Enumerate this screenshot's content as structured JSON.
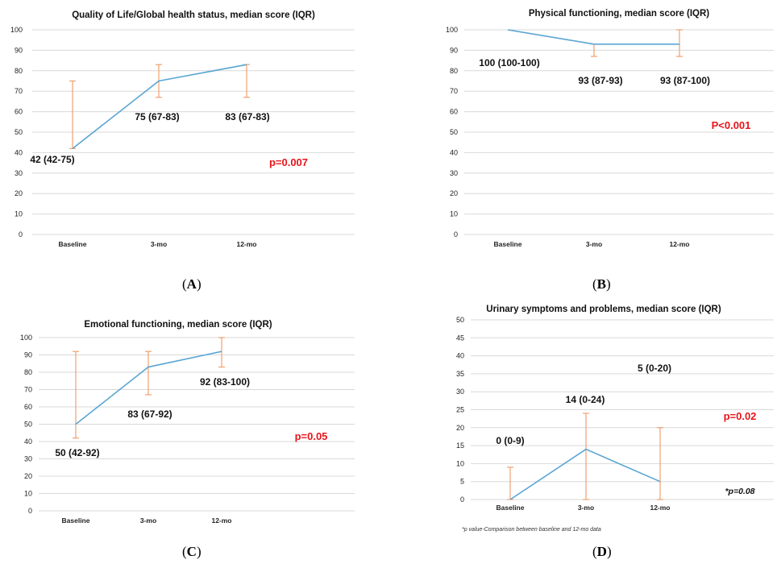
{
  "chart_data": [
    {
      "type": "line",
      "panel": "A",
      "title": "Quality of Life/Global health status, median score (IQR)",
      "categories": [
        "Baseline",
        "3-mo",
        "12-mo"
      ],
      "series": [
        {
          "values": [
            42,
            75,
            83
          ],
          "low": [
            42,
            67,
            67
          ],
          "high": [
            75,
            83,
            83
          ]
        }
      ],
      "data_labels": [
        "42 (42-75)",
        "75 (67-83)",
        "83 (67-83)"
      ],
      "ylim": [
        0,
        100
      ],
      "yticks": [
        0,
        10,
        20,
        30,
        40,
        50,
        60,
        70,
        80,
        90,
        100
      ],
      "grid": true,
      "p_value": "p=0.007",
      "caption": "A"
    },
    {
      "type": "line",
      "panel": "B",
      "title": "Physical functioning, median score (IQR)",
      "categories": [
        "Baseline",
        "3-mo",
        "12-mo"
      ],
      "series": [
        {
          "values": [
            100,
            93,
            93
          ],
          "low": [
            100,
            87,
            87
          ],
          "high": [
            100,
            93,
            100
          ]
        }
      ],
      "data_labels": [
        "100 (100-100)",
        "93 (87-93)",
        "93 (87-100)"
      ],
      "ylim": [
        0,
        100
      ],
      "yticks": [
        0,
        10,
        20,
        30,
        40,
        50,
        60,
        70,
        80,
        90,
        100
      ],
      "grid": true,
      "p_value": "P<0.001",
      "caption": "B"
    },
    {
      "type": "line",
      "panel": "C",
      "title": "Emotional functioning, median score (IQR)",
      "categories": [
        "Baseline",
        "3-mo",
        "12-mo"
      ],
      "series": [
        {
          "values": [
            50,
            83,
            92
          ],
          "low": [
            42,
            67,
            83
          ],
          "high": [
            92,
            92,
            100
          ]
        }
      ],
      "data_labels": [
        "50 (42-92)",
        "83 (67-92)",
        "92 (83-100)"
      ],
      "ylim": [
        0,
        100
      ],
      "yticks": [
        0,
        10,
        20,
        30,
        40,
        50,
        60,
        70,
        80,
        90,
        100
      ],
      "grid": true,
      "p_value": "p=0.05",
      "caption": "C"
    },
    {
      "type": "line",
      "panel": "D",
      "title": "Urinary symptoms and problems, median score (IQR)",
      "categories": [
        "Baseline",
        "3-mo",
        "12-mo"
      ],
      "series": [
        {
          "values": [
            0,
            14,
            5
          ],
          "low": [
            0,
            0,
            0
          ],
          "high": [
            9,
            24,
            20
          ]
        }
      ],
      "data_labels": [
        "0 (0-9)",
        "14 (0-24)",
        "5 (0-20)"
      ],
      "ylim": [
        0,
        50
      ],
      "yticks": [
        0,
        5,
        10,
        15,
        20,
        25,
        30,
        35,
        40,
        45,
        50
      ],
      "grid": true,
      "p_value": "p=0.02",
      "note": "*p=0.08",
      "footnote": "*p value-Comparison between baseline and 12-mo data",
      "caption": "D"
    }
  ]
}
